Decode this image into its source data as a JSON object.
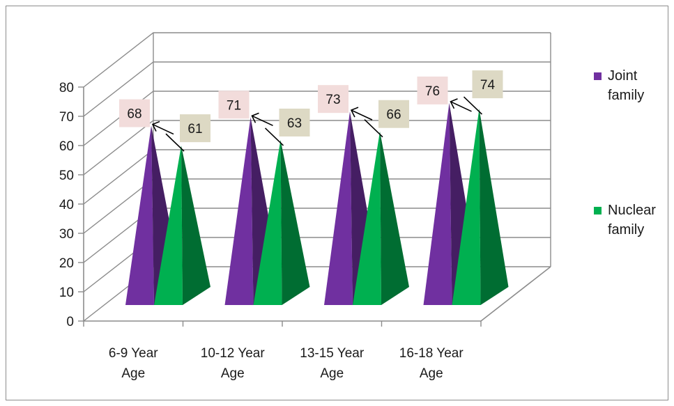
{
  "chart_data": {
    "type": "bar",
    "style": "3d-pyramid",
    "categories": [
      "6-9 Year Age",
      "10-12 Year Age",
      "13-15 Year Age",
      "16-18 Year Age"
    ],
    "series": [
      {
        "name": "Joint family",
        "values": [
          68,
          71,
          73,
          76
        ],
        "color": "#7030a0"
      },
      {
        "name": "Nuclear family",
        "values": [
          61,
          63,
          66,
          74
        ],
        "color": "#00b050"
      }
    ],
    "ylim": [
      0,
      80
    ],
    "yticks": [
      0,
      10,
      20,
      30,
      40,
      50,
      60,
      70,
      80
    ],
    "grid": true,
    "legend_position": "right",
    "data_label_colors": {
      "Joint family": "#f2dcdb",
      "Nuclear family": "#ddd9c4"
    }
  }
}
